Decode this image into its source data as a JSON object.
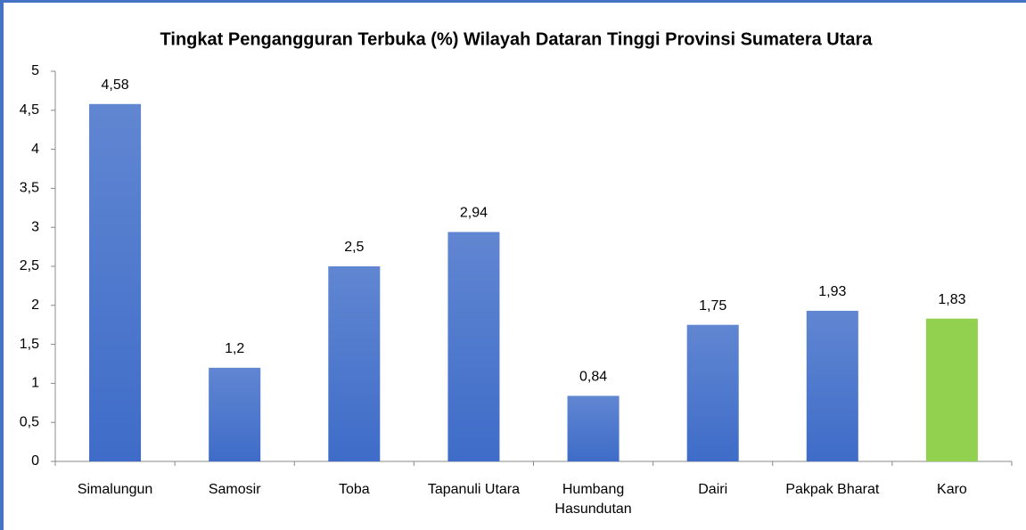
{
  "chart_data": {
    "type": "bar",
    "title": "Tingkat Pengangguran Terbuka (%) Wilayah Dataran Tinggi Provinsi Sumatera Utara",
    "categories": [
      "Simalungun",
      "Samosir",
      "Toba",
      "Tapanuli Utara",
      "Humbang Hasundutan",
      "Dairi",
      "Pakpak Bharat",
      "Karo"
    ],
    "values": [
      4.58,
      1.2,
      2.5,
      2.94,
      0.84,
      1.75,
      1.93,
      1.83
    ],
    "value_labels": [
      "4,58",
      "1,2",
      "2,5",
      "2,94",
      "0,84",
      "1,75",
      "1,93",
      "1,83"
    ],
    "colors": [
      "#3e6cc8",
      "#3e6cc8",
      "#3e6cc8",
      "#3e6cc8",
      "#3e6cc8",
      "#3e6cc8",
      "#3e6cc8",
      "#92d050"
    ],
    "ylim": [
      0,
      5
    ],
    "yticks": [
      0,
      {
        "value": 0.5,
        "label": "0,5"
      },
      1,
      {
        "value": 1.5,
        "label": "1,5"
      },
      2,
      {
        "value": 2.5,
        "label": "2,5"
      },
      3,
      {
        "value": 3.5,
        "label": "3,5"
      },
      4,
      {
        "value": 4.5,
        "label": "4,5"
      },
      5
    ],
    "grid": false
  }
}
